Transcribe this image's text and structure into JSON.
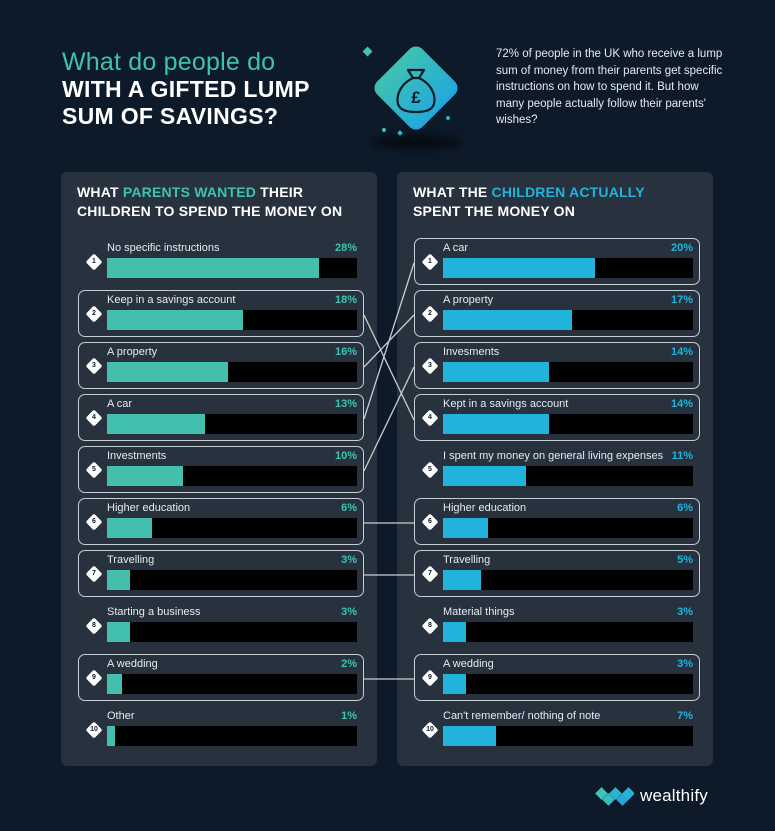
{
  "header": {
    "title_sub": "What do people do",
    "title_line1": "WITH A GIFTED LUMP",
    "title_line2": "SUM OF SAVINGS?",
    "hero_icon": "money-bag-pound-icon",
    "intro": "72% of people in the UK who receive a lump sum of money from their parents get specific instructions on how to spend it. But how many people actually follow their parents' wishes?"
  },
  "colors": {
    "background": "#0d1a29",
    "panel": "#27323e",
    "parents_accent": "#3fc2b0",
    "children_accent": "#22b3dc",
    "track": "#000000"
  },
  "left_panel": {
    "head_pre": "WHAT ",
    "head_hl": "PARENTS WANTED",
    "head_post": " THEIR",
    "head_line2": "CHILDREN TO SPEND THE MONEY ON"
  },
  "right_panel": {
    "head_pre": "WHAT THE ",
    "head_hl": "CHILDREN ACTUALLY",
    "head_line2": "SPENT THE MONEY ON"
  },
  "chart_data": [
    {
      "type": "bar",
      "orientation": "horizontal",
      "title": "What parents wanted their children to spend the money on",
      "categories": [
        "No specific instructions",
        "Keep in a savings account",
        "A property",
        "A car",
        "Investments",
        "Higher education",
        "Travelling",
        "Starting a business",
        "A wedding",
        "Other"
      ],
      "values": [
        28,
        18,
        16,
        13,
        10,
        6,
        3,
        3,
        2,
        1
      ],
      "value_labels": [
        "28%",
        "18%",
        "16%",
        "13%",
        "10%",
        "6%",
        "3%",
        "3%",
        "2%",
        "1%"
      ],
      "ranks": [
        "1",
        "2",
        "3",
        "4",
        "5",
        "6",
        "7",
        "8",
        "9",
        "10"
      ],
      "boxed": [
        false,
        true,
        true,
        true,
        true,
        true,
        true,
        false,
        true,
        false
      ],
      "color": "#43bfae",
      "xlim": [
        0,
        33
      ]
    },
    {
      "type": "bar",
      "orientation": "horizontal",
      "title": "What the children actually spent the money on",
      "categories": [
        "A car",
        "A property",
        "Invesments",
        "Kept in a savings account",
        "I spent my money on general living expenses",
        "Higher education",
        "Travelling",
        "Material things",
        "A wedding",
        "Can't remember/ nothing of note"
      ],
      "values": [
        20,
        17,
        14,
        14,
        11,
        6,
        5,
        3,
        3,
        7
      ],
      "value_labels": [
        "20%",
        "17%",
        "14%",
        "14%",
        "11%",
        "6%",
        "5%",
        "3%",
        "3%",
        "7%"
      ],
      "ranks": [
        "1",
        "2",
        "3",
        "4",
        "5",
        "6",
        "7",
        "8",
        "9",
        "10"
      ],
      "boxed": [
        true,
        true,
        true,
        true,
        false,
        true,
        true,
        false,
        true,
        false
      ],
      "color": "#22b3dc",
      "xlim": [
        0,
        33
      ]
    }
  ],
  "connections": [
    {
      "from": "Keep in a savings account (2)",
      "to": "Kept in a savings account (4)"
    },
    {
      "from": "A property (3)",
      "to": "A property (2)"
    },
    {
      "from": "A car (4)",
      "to": "A car (1)"
    },
    {
      "from": "Investments (5)",
      "to": "Invesments (3)"
    },
    {
      "from": "Higher education (6)",
      "to": "Higher education (6)"
    },
    {
      "from": "Travelling (7)",
      "to": "Travelling (7)"
    },
    {
      "from": "A wedding (9)",
      "to": "A wedding (9)"
    }
  ],
  "brand": {
    "name": "wealthify",
    "logo_icon": "wealthify-diamonds-logo-icon"
  }
}
